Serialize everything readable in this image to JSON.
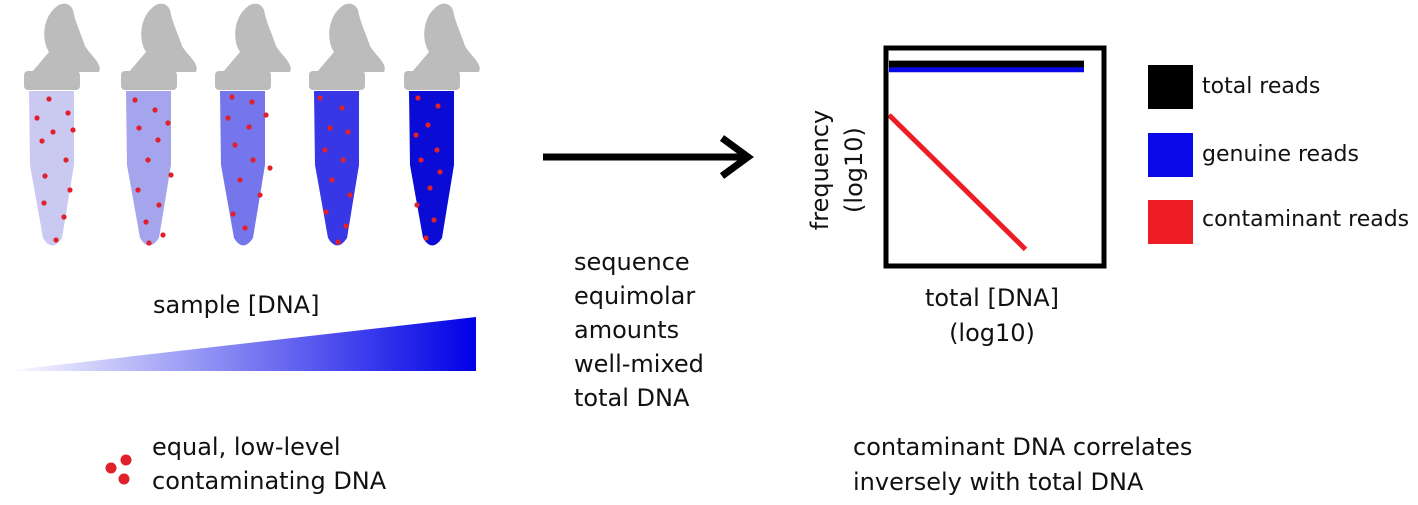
{
  "tubes": {
    "count": 5,
    "cap_color": "#bcbcbc",
    "liquid_colors": [
      "#c9c9f2",
      "#a5a5ee",
      "#7575ec",
      "#3737e6",
      "#0b0bd6"
    ],
    "dot_color": "#e0202a"
  },
  "gradient": {
    "label": "sample [DNA]",
    "start_color": "#ffffff",
    "end_color": "#0000e6"
  },
  "contaminant_key": {
    "label_lines": [
      "equal, low-level",
      "contaminating DNA"
    ],
    "dot_color": "#e0202a"
  },
  "arrow": {
    "caption_lines": [
      "sequence",
      "equimolar",
      "amounts",
      "well-mixed",
      "total DNA"
    ]
  },
  "chart_data": {
    "type": "line",
    "title": "",
    "xlabel_lines": [
      "total [DNA]",
      "(log10)"
    ],
    "ylabel_lines": [
      "frequency",
      "(log10)"
    ],
    "xlim": [
      0,
      1
    ],
    "ylim": [
      0,
      1
    ],
    "x": [
      0,
      1
    ],
    "grid": false,
    "legend": "right",
    "series": [
      {
        "name": "total reads",
        "color": "#000000",
        "x": [
          0,
          1
        ],
        "values": [
          0.94,
          0.94
        ]
      },
      {
        "name": "genuine reads",
        "color": "#0a0ae8",
        "x": [
          0,
          1
        ],
        "values": [
          0.915,
          0.915
        ]
      },
      {
        "name": "contaminant reads",
        "color": "#ee1c24",
        "x": [
          0,
          0.7
        ],
        "values": [
          0.7,
          0.06
        ]
      }
    ]
  },
  "conclusion": {
    "lines": [
      "contaminant DNA correlates",
      "inversely with total DNA"
    ]
  }
}
